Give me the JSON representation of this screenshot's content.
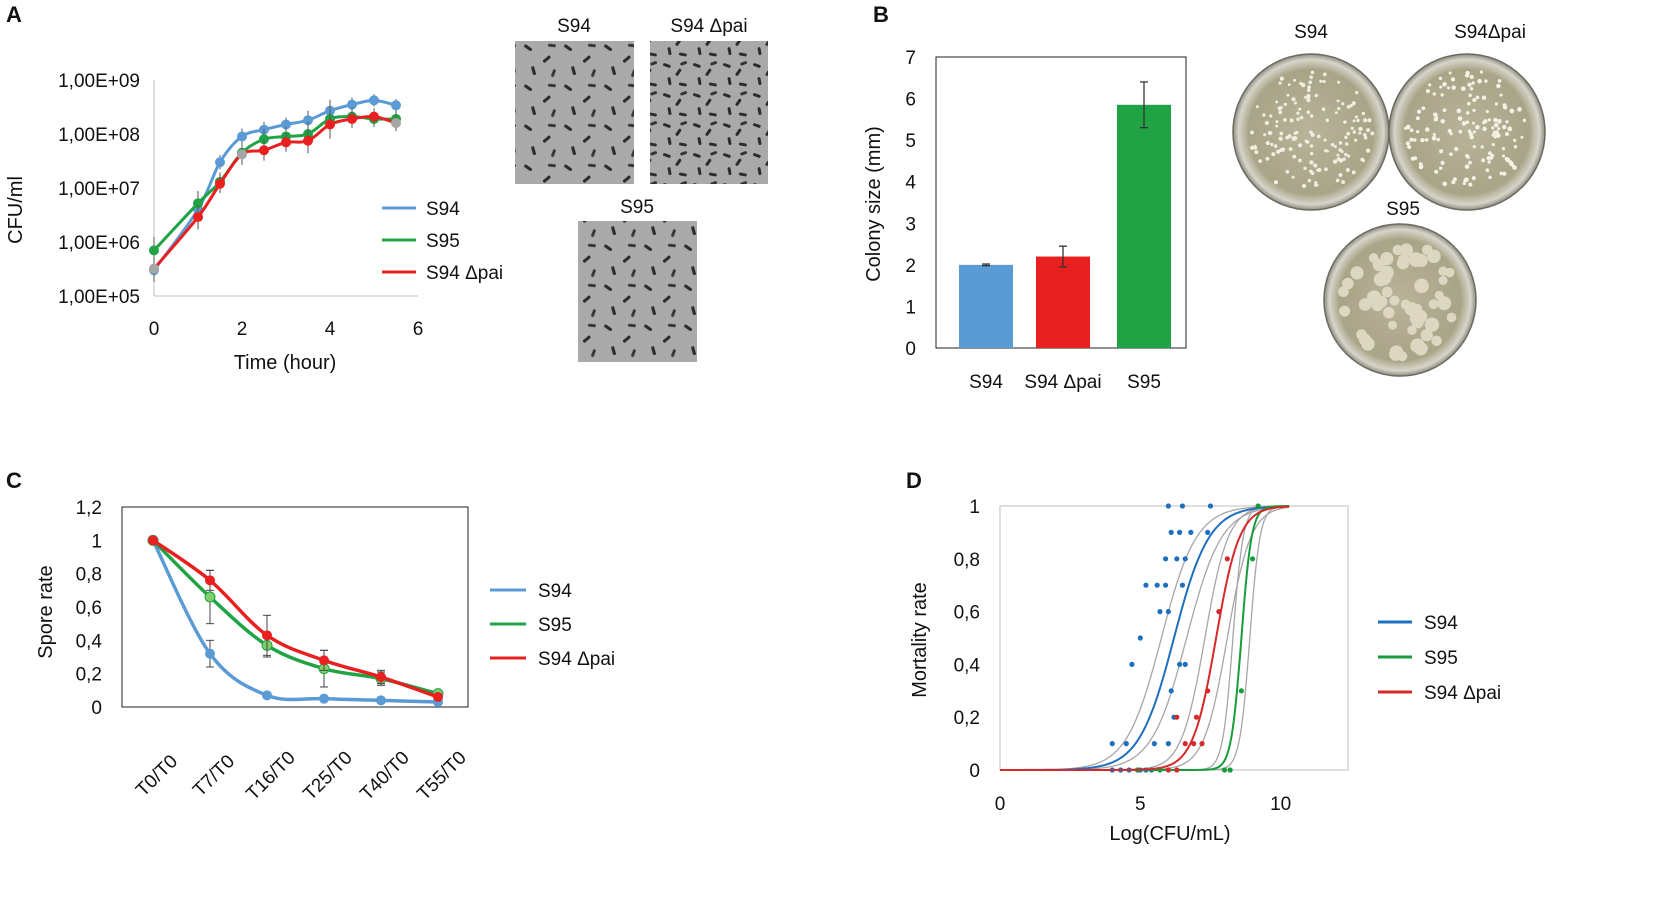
{
  "panel_letters": [
    "A",
    "B",
    "C",
    "D"
  ],
  "colors": {
    "S94": "#5b9bd5",
    "S95": "#1fa345",
    "S94_dpai": "#e8201f",
    "grey": "#a6a6a6",
    "S94_D": "#1f6fbf",
    "S95_D": "#179c3a",
    "S94_dpai_D": "#d42a2a"
  },
  "micrograph_labels": [
    "S94",
    "S94 Δpai",
    "S95"
  ],
  "plate_labels": [
    "S94",
    "S94Δpai",
    "S95"
  ],
  "chart_data": [
    {
      "id": "A",
      "type": "line",
      "yscale": "log10",
      "title": "",
      "xlabel": "Time (hour)",
      "ylabel": "CFU/ml",
      "xlim": [
        0,
        6
      ],
      "ylim": [
        100000,
        1000000000
      ],
      "xticks": [
        "0",
        "2",
        "4",
        "6"
      ],
      "yticks": [
        "1,00E+05",
        "1,00E+06",
        "1,00E+07",
        "1,00E+08",
        "1,00E+09"
      ],
      "x": [
        0,
        1,
        1.5,
        2,
        2.5,
        3,
        3.5,
        4,
        4.5,
        5,
        5.5
      ],
      "series": [
        {
          "name": "S94",
          "color_key": "S94",
          "values": [
            300000,
            4000000,
            30000000,
            90000000,
            120000000,
            150000000,
            180000000,
            270000000,
            350000000,
            420000000,
            340000000
          ]
        },
        {
          "name": "S95",
          "color_key": "S95",
          "values": [
            700000,
            5200000,
            13000000,
            45000000,
            80000000,
            90000000,
            100000000,
            190000000,
            210000000,
            190000000,
            190000000
          ]
        },
        {
          "name": "S94 Δpai",
          "color_key": "S94_dpai",
          "values": [
            320000,
            2900000,
            12000000,
            42000000,
            50000000,
            70000000,
            75000000,
            150000000,
            190000000,
            210000000,
            160000000
          ]
        }
      ],
      "legend": [
        "S94",
        "S95",
        "S94 Δpai"
      ]
    },
    {
      "id": "B",
      "type": "bar",
      "title": "",
      "xlabel": "",
      "ylabel": "Colony size (mm)",
      "ylim": [
        0,
        7
      ],
      "yticks": [
        "0",
        "1",
        "2",
        "3",
        "4",
        "5",
        "6",
        "7"
      ],
      "categories": [
        "S94",
        "S94 Δpai",
        "S95"
      ],
      "values": [
        2.0,
        2.2,
        5.85
      ],
      "errors": [
        0.02,
        0.25,
        0.55
      ],
      "color_keys": [
        "S94",
        "S94_dpai",
        "S95"
      ]
    },
    {
      "id": "C",
      "type": "line",
      "title": "",
      "xlabel": "",
      "ylabel": "Spore rate",
      "ylim": [
        0,
        1.2
      ],
      "yticks": [
        "0",
        "0,2",
        "0,4",
        "0,6",
        "0,8",
        "1",
        "1,2"
      ],
      "categories": [
        "T0/T0",
        "T7/T0",
        "T16/T0",
        "T25/T0",
        "T40/T0",
        "T55/T0"
      ],
      "series": [
        {
          "name": "S94",
          "color_key": "S94",
          "values": [
            1.0,
            0.32,
            0.07,
            0.05,
            0.04,
            0.03
          ],
          "errors": [
            0,
            0.08,
            0.01,
            0.01,
            0.01,
            0.005
          ]
        },
        {
          "name": "S95",
          "color_key": "S95",
          "values": [
            1.0,
            0.66,
            0.37,
            0.23,
            0.17,
            0.08
          ],
          "errors": [
            0,
            0.16,
            0.07,
            0.11,
            0.04,
            0.01
          ]
        },
        {
          "name": "S94 Δpai",
          "color_key": "S94_dpai",
          "values": [
            1.0,
            0.76,
            0.43,
            0.28,
            0.18,
            0.06
          ],
          "errors": [
            0,
            0.06,
            0.12,
            0.06,
            0.04,
            0.01
          ]
        }
      ],
      "legend": [
        "S94",
        "S95",
        "S94 Δpai"
      ]
    },
    {
      "id": "D",
      "type": "scatter",
      "title": "",
      "xlabel": "Log(CFU/mL)",
      "ylabel": "Mortality rate",
      "xlim": [
        0,
        12.4
      ],
      "ylim": [
        0,
        1
      ],
      "xticks": [
        "0",
        "5",
        "10"
      ],
      "yticks": [
        "0",
        "0,2",
        "0,4",
        "0,6",
        "0,8",
        "1"
      ],
      "series": [
        {
          "name": "S94",
          "color_key": "S94_D",
          "curve": {
            "ld50": 6.2,
            "slope": 1.6
          },
          "band": [
            [
              5.75,
              1.6
            ],
            [
              6.65,
              1.6
            ]
          ],
          "points": [
            [
              4.0,
              0
            ],
            [
              4.3,
              0
            ],
            [
              4.6,
              0
            ],
            [
              5.0,
              0
            ],
            [
              5.2,
              0
            ],
            [
              5.4,
              0
            ],
            [
              5.5,
              0.1
            ],
            [
              4.0,
              0.1
            ],
            [
              4.5,
              0.1
            ],
            [
              4.7,
              0.4
            ],
            [
              5.0,
              0.5
            ],
            [
              5.2,
              0.7
            ],
            [
              5.6,
              0.7
            ],
            [
              5.9,
              0.7
            ],
            [
              5.7,
              0.6
            ],
            [
              6.0,
              0.6
            ],
            [
              6.5,
              0.7
            ],
            [
              6.1,
              0.3
            ],
            [
              6.0,
              0.1
            ],
            [
              6.6,
              0.4
            ],
            [
              6.4,
              0.4
            ],
            [
              6.6,
              0.8
            ],
            [
              5.9,
              0.8
            ],
            [
              6.3,
              0.8
            ],
            [
              6.1,
              0.9
            ],
            [
              6.4,
              0.9
            ],
            [
              6.8,
              0.9
            ],
            [
              6.0,
              1.0
            ],
            [
              6.5,
              1.0
            ],
            [
              7.4,
              0.9
            ],
            [
              7.5,
              1.0
            ],
            [
              6.2,
              0.2
            ]
          ]
        },
        {
          "name": "S95",
          "color_key": "S95_D",
          "curve": {
            "ld50": 8.6,
            "slope": 5.5
          },
          "band": [
            [
              8.3,
              5.5
            ],
            [
              8.9,
              5.5
            ]
          ],
          "points": [
            [
              4.9,
              0
            ],
            [
              5.7,
              0
            ],
            [
              8.0,
              0
            ],
            [
              8.2,
              0
            ],
            [
              8.6,
              0.3
            ],
            [
              9.0,
              0.8
            ],
            [
              9.2,
              1.0
            ]
          ]
        },
        {
          "name": "S94 Δpai",
          "color_key": "S94_dpai_D",
          "curve": {
            "ld50": 7.7,
            "slope": 2.4
          },
          "band": [
            [
              7.3,
              2.4
            ],
            [
              8.1,
              2.4
            ]
          ],
          "points": [
            [
              6.0,
              0
            ],
            [
              6.3,
              0
            ],
            [
              6.6,
              0.1
            ],
            [
              6.9,
              0.1
            ],
            [
              7.2,
              0.1
            ],
            [
              7.0,
              0.2
            ],
            [
              7.4,
              0.3
            ],
            [
              7.8,
              0.6
            ],
            [
              8.1,
              0.8
            ],
            [
              6.3,
              0.2
            ]
          ]
        }
      ],
      "legend": [
        "S94",
        "S95",
        "S94 Δpai"
      ]
    }
  ]
}
